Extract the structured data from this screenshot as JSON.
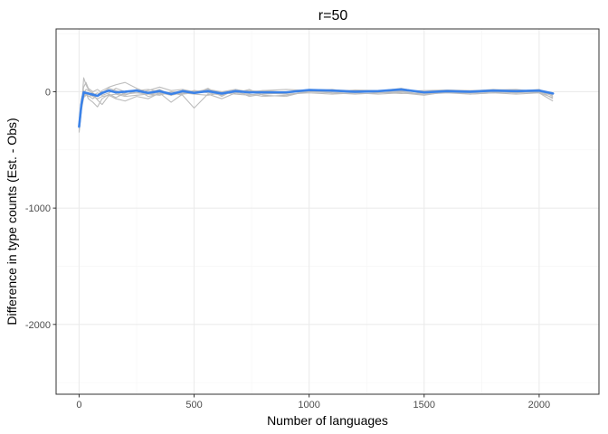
{
  "chart_data": {
    "type": "line",
    "title": "r=50",
    "xlabel": "Number of languages",
    "ylabel": "Difference in type counts (Est. - Obs)",
    "xlim": [
      -100,
      2260
    ],
    "ylim": [
      -2600,
      540
    ],
    "x_ticks": [
      0,
      500,
      1000,
      1500,
      2000
    ],
    "x_tick_labels": [
      "0",
      "500",
      "1000",
      "1500",
      "2000"
    ],
    "y_ticks": [
      0,
      -1000,
      -2000
    ],
    "y_tick_labels": [
      "0",
      "-1000",
      "-2000"
    ],
    "grid": true,
    "colors": {
      "background": "#ffffff",
      "panel_border": "#333333",
      "grid_major": "#ebebeb",
      "grid_minor": "#f5f5f5",
      "replicate_line": "#bdbdbd",
      "mean_line": "#3b82e8"
    },
    "series": [
      {
        "role": "replicate",
        "x": [
          0,
          10,
          20,
          30,
          40,
          60,
          80,
          100,
          130,
          160,
          200,
          250,
          300,
          350,
          400,
          450,
          500,
          560,
          620,
          680,
          740,
          800,
          900,
          1000,
          1100,
          1200,
          1300,
          1400,
          1500,
          1600,
          1700,
          1800,
          1900,
          2000,
          2060
        ],
        "y": [
          -320,
          -140,
          -40,
          -20,
          -35,
          -60,
          -30,
          10,
          40,
          60,
          80,
          30,
          -10,
          20,
          -30,
          10,
          -20,
          30,
          -40,
          20,
          -10,
          10,
          -5,
          20,
          15,
          10,
          5,
          30,
          -10,
          15,
          5,
          20,
          10,
          -5,
          -30
        ]
      },
      {
        "role": "replicate",
        "x": [
          0,
          10,
          20,
          30,
          40,
          60,
          80,
          100,
          130,
          160,
          200,
          250,
          300,
          350,
          400,
          450,
          500,
          560,
          620,
          680,
          740,
          800,
          900,
          1000,
          1100,
          1200,
          1300,
          1400,
          1500,
          1600,
          1700,
          1800,
          1900,
          2000,
          2060
        ],
        "y": [
          -350,
          -150,
          120,
          60,
          20,
          -20,
          -70,
          -110,
          -30,
          -60,
          -80,
          -40,
          -60,
          -10,
          -90,
          -20,
          10,
          -10,
          -30,
          10,
          -40,
          -20,
          -10,
          5,
          20,
          -5,
          10,
          -10,
          -30,
          0,
          -20,
          -10,
          0,
          -10,
          -80
        ]
      },
      {
        "role": "replicate",
        "x": [
          0,
          10,
          20,
          30,
          40,
          60,
          80,
          100,
          130,
          160,
          200,
          250,
          300,
          350,
          400,
          450,
          500,
          560,
          620,
          680,
          740,
          800,
          900,
          1000,
          1100,
          1200,
          1300,
          1400,
          1500,
          1600,
          1700,
          1800,
          1900,
          2000,
          2060
        ],
        "y": [
          -300,
          -100,
          -30,
          -10,
          -60,
          -90,
          -130,
          -60,
          -20,
          -50,
          -10,
          20,
          -40,
          -20,
          -10,
          -30,
          -140,
          -20,
          -60,
          -10,
          20,
          -30,
          -40,
          10,
          -10,
          -20,
          -10,
          0,
          -20,
          10,
          -10,
          0,
          -10,
          0,
          -20
        ]
      },
      {
        "role": "replicate",
        "x": [
          0,
          10,
          20,
          30,
          40,
          60,
          80,
          100,
          130,
          160,
          200,
          250,
          300,
          350,
          400,
          450,
          500,
          560,
          620,
          680,
          740,
          800,
          900,
          1000,
          1100,
          1200,
          1300,
          1400,
          1500,
          1600,
          1700,
          1800,
          1900,
          2000,
          2060
        ],
        "y": [
          -280,
          -80,
          40,
          80,
          30,
          0,
          20,
          -10,
          30,
          10,
          -20,
          -10,
          10,
          40,
          10,
          20,
          0,
          20,
          0,
          -10,
          -20,
          -40,
          -30,
          0,
          10,
          5,
          0,
          10,
          -5,
          5,
          -5,
          10,
          5,
          20,
          -40
        ]
      },
      {
        "role": "replicate",
        "x": [
          0,
          10,
          20,
          30,
          40,
          60,
          80,
          100,
          130,
          160,
          200,
          250,
          300,
          350,
          400,
          450,
          500,
          560,
          620,
          680,
          740,
          800,
          900,
          1000,
          1100,
          1200,
          1300,
          1400,
          1500,
          1600,
          1700,
          1800,
          1900,
          2000,
          2060
        ],
        "y": [
          -260,
          -60,
          10,
          -10,
          -40,
          -30,
          -10,
          -30,
          -10,
          30,
          0,
          -10,
          -20,
          -30,
          0,
          -10,
          10,
          0,
          -10,
          0,
          10,
          0,
          -5,
          0,
          -10,
          0,
          -5,
          -15,
          -10,
          -5,
          -10,
          0,
          -10,
          10,
          -60
        ]
      },
      {
        "role": "replicate",
        "x": [
          0,
          10,
          20,
          30,
          40,
          60,
          80,
          100,
          130,
          160,
          200,
          250,
          300,
          350,
          400,
          450,
          500,
          560,
          620,
          680,
          740,
          800,
          900,
          1000,
          1100,
          1200,
          1300,
          1400,
          1500,
          1600,
          1700,
          1800,
          1900,
          2000,
          2060
        ],
        "y": [
          -310,
          -120,
          -20,
          20,
          10,
          -10,
          -40,
          -20,
          10,
          -10,
          -30,
          10,
          20,
          0,
          -10,
          -20,
          -10,
          10,
          0,
          20,
          0,
          10,
          20,
          10,
          0,
          15,
          10,
          5,
          10,
          15,
          10,
          15,
          20,
          0,
          -10
        ]
      },
      {
        "role": "replicate",
        "x": [
          0,
          10,
          20,
          30,
          40,
          60,
          80,
          100,
          130,
          160,
          200,
          250,
          300,
          350,
          400,
          450,
          500,
          560,
          620,
          680,
          740,
          800,
          900,
          1000,
          1100,
          1200,
          1300,
          1400,
          1500,
          1600,
          1700,
          1800,
          1900,
          2000,
          2060
        ],
        "y": [
          -340,
          -160,
          -50,
          -30,
          -20,
          -40,
          -60,
          -40,
          -30,
          -20,
          -40,
          -30,
          -20,
          -10,
          -30,
          -10,
          -20,
          -30,
          -10,
          -20,
          -30,
          -10,
          -20,
          -10,
          -20,
          -10,
          -20,
          -10,
          -20,
          -10,
          -20,
          -10,
          -20,
          -10,
          -50
        ]
      },
      {
        "role": "mean",
        "x": [
          0,
          10,
          20,
          30,
          40,
          60,
          80,
          100,
          130,
          160,
          200,
          250,
          300,
          350,
          400,
          450,
          500,
          560,
          620,
          680,
          740,
          800,
          900,
          1000,
          1100,
          1200,
          1300,
          1400,
          1500,
          1600,
          1700,
          1800,
          1900,
          2000,
          2060
        ],
        "y": [
          -300,
          -110,
          -5,
          -10,
          -15,
          -25,
          -35,
          -10,
          10,
          -5,
          0,
          10,
          -10,
          5,
          -20,
          5,
          -10,
          5,
          -15,
          5,
          -5,
          -5,
          -5,
          15,
          10,
          0,
          5,
          20,
          -5,
          5,
          0,
          10,
          5,
          10,
          -15
        ]
      }
    ]
  }
}
